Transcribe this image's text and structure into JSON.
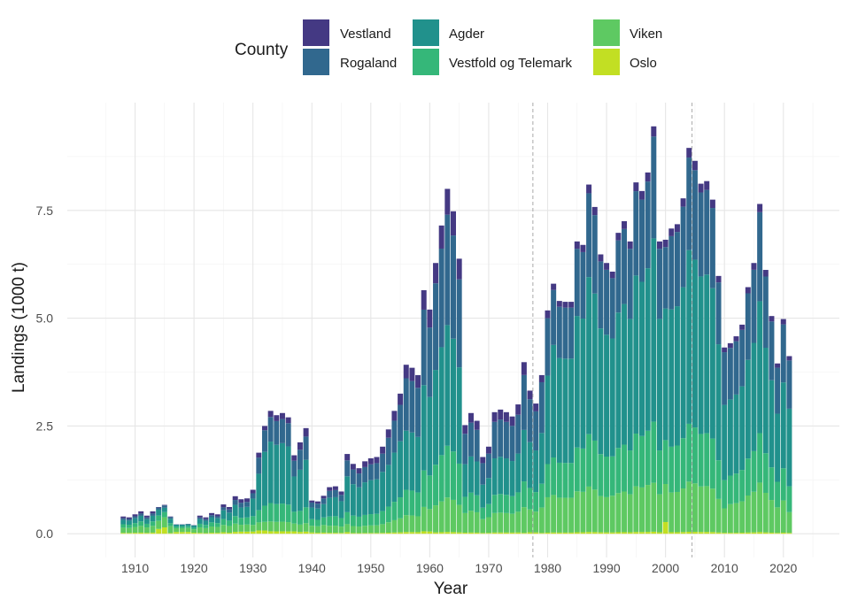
{
  "chart_data": {
    "type": "bar",
    "stacked": true,
    "xlabel": "Year",
    "ylabel": "Landings (1000 t)",
    "xlim": [
      1898.5,
      2029.5
    ],
    "ylim": [
      -0.55,
      10.0
    ],
    "x_ticks": [
      1910,
      1920,
      1930,
      1940,
      1950,
      1960,
      1970,
      1980,
      1990,
      2000,
      2010,
      2020
    ],
    "x_minor_ticks": [
      1905,
      1915,
      1925,
      1935,
      1945,
      1955,
      1965,
      1975,
      1985,
      1995,
      2005,
      2015,
      2025
    ],
    "y_ticks": [
      0,
      2.5,
      5,
      7.5
    ],
    "y_tick_labels": [
      "0.0",
      "2.5",
      "5.0",
      "7.5"
    ],
    "y_minor_ticks": [
      1.25,
      3.75,
      6.25,
      8.75
    ],
    "reference_lines_x": [
      1977.5,
      2004.5
    ],
    "legend": {
      "title": "County",
      "placement": "top",
      "items": [
        {
          "name": "Vestland",
          "color": "#443983"
        },
        {
          "name": "Rogaland",
          "color": "#31688e"
        },
        {
          "name": "Agder",
          "color": "#21918c"
        },
        {
          "name": "Vestfold og Telemark",
          "color": "#35b779"
        },
        {
          "name": "Viken",
          "color": "#5ec962"
        },
        {
          "name": "Oslo",
          "color": "#c2df23"
        }
      ]
    },
    "series_order": [
      "Oslo",
      "Viken",
      "Vestfold og Telemark",
      "Agder",
      "Rogaland",
      "Vestland"
    ],
    "years": [
      1908,
      1909,
      1910,
      1911,
      1912,
      1913,
      1914,
      1915,
      1916,
      1917,
      1918,
      1919,
      1920,
      1921,
      1922,
      1923,
      1924,
      1925,
      1926,
      1927,
      1928,
      1929,
      1930,
      1931,
      1932,
      1933,
      1934,
      1935,
      1936,
      1937,
      1938,
      1939,
      1940,
      1941,
      1942,
      1943,
      1944,
      1945,
      1946,
      1947,
      1948,
      1949,
      1950,
      1951,
      1952,
      1953,
      1954,
      1955,
      1956,
      1957,
      1958,
      1959,
      1960,
      1961,
      1962,
      1963,
      1964,
      1965,
      1966,
      1967,
      1968,
      1969,
      1970,
      1971,
      1972,
      1973,
      1974,
      1975,
      1976,
      1977,
      1978,
      1979,
      1980,
      1981,
      1982,
      1983,
      1984,
      1985,
      1986,
      1987,
      1988,
      1989,
      1990,
      1991,
      1992,
      1993,
      1994,
      1995,
      1996,
      1997,
      1998,
      1999,
      2000,
      2001,
      2002,
      2003,
      2004,
      2005,
      2006,
      2007,
      2008,
      2009,
      2010,
      2011,
      2012,
      2013,
      2014,
      2015,
      2016,
      2017,
      2018,
      2019,
      2020,
      2021
    ],
    "totals": [
      0.4,
      0.38,
      0.45,
      0.52,
      0.42,
      0.52,
      0.62,
      0.67,
      0.4,
      0.22,
      0.22,
      0.23,
      0.2,
      0.42,
      0.38,
      0.48,
      0.45,
      0.68,
      0.62,
      0.87,
      0.8,
      0.82,
      1.02,
      1.88,
      2.5,
      2.85,
      2.75,
      2.8,
      2.7,
      1.82,
      2.12,
      2.45,
      0.77,
      0.75,
      0.88,
      1.08,
      1.1,
      0.98,
      1.85,
      1.62,
      1.52,
      1.68,
      1.75,
      1.78,
      2.02,
      2.42,
      2.85,
      3.25,
      3.92,
      3.85,
      3.68,
      5.65,
      5.2,
      6.28,
      7.15,
      8.0,
      7.48,
      6.38,
      2.52,
      2.8,
      2.62,
      1.78,
      2.02,
      2.82,
      2.88,
      2.82,
      2.72,
      3.0,
      3.98,
      3.32,
      3.02,
      3.68,
      5.18,
      5.8,
      5.4,
      5.38,
      5.38,
      6.78,
      6.7,
      8.1,
      7.58,
      6.48,
      6.28,
      6.08,
      6.98,
      7.25,
      6.78,
      8.15,
      7.95,
      8.38,
      9.45,
      6.78,
      6.82,
      7.08,
      7.18,
      7.78,
      8.95,
      8.65,
      8.12,
      8.18,
      7.75,
      5.98,
      4.32,
      4.42,
      4.58,
      4.85,
      5.72,
      6.28,
      7.65,
      6.12,
      5.05,
      3.95,
      4.98,
      4.12
    ],
    "shares": {
      "Oslo": [
        0.05,
        0.05,
        0.05,
        0.05,
        0.05,
        0.05,
        0.18,
        0.22,
        0.04,
        0.18,
        0.18,
        0.18,
        0.12,
        0.05,
        0.04,
        0.05,
        0.05,
        0.05,
        0.04,
        0.05,
        0.06,
        0.06,
        0.05,
        0.04,
        0.03,
        0.02,
        0.02,
        0.02,
        0.02,
        0.03,
        0.02,
        0.02,
        0.04,
        0.03,
        0.03,
        0.02,
        0.02,
        0.02,
        0.02,
        0.01,
        0.01,
        0.01,
        0.01,
        0.01,
        0.01,
        0.01,
        0.01,
        0.01,
        0.01,
        0.01,
        0.01,
        0.01,
        0.01,
        0.005,
        0.005,
        0.005,
        0.005,
        0.005,
        0.01,
        0.01,
        0.01,
        0.01,
        0.01,
        0.01,
        0.01,
        0.01,
        0.01,
        0.01,
        0.005,
        0.01,
        0.01,
        0.005,
        0.005,
        0.005,
        0.005,
        0.005,
        0.005,
        0.005,
        0.005,
        0.005,
        0.005,
        0.005,
        0.005,
        0.005,
        0.005,
        0.005,
        0.005,
        0.005,
        0.005,
        0.005,
        0.005,
        0.005,
        0.04,
        0.005,
        0.005,
        0.005,
        0.005,
        0.005,
        0.005,
        0.005,
        0.005,
        0.005,
        0.005,
        0.005,
        0.005,
        0.005,
        0.005,
        0.005,
        0.005,
        0.005,
        0.005,
        0.005,
        0.005,
        0.005
      ],
      "Viken": [
        0.3,
        0.3,
        0.3,
        0.3,
        0.3,
        0.3,
        0.3,
        0.35,
        0.4,
        0.4,
        0.4,
        0.4,
        0.4,
        0.3,
        0.3,
        0.3,
        0.3,
        0.25,
        0.25,
        0.22,
        0.2,
        0.2,
        0.15,
        0.1,
        0.08,
        0.08,
        0.08,
        0.08,
        0.08,
        0.1,
        0.08,
        0.08,
        0.2,
        0.2,
        0.2,
        0.15,
        0.15,
        0.15,
        0.1,
        0.1,
        0.1,
        0.1,
        0.1,
        0.1,
        0.1,
        0.1,
        0.1,
        0.1,
        0.1,
        0.1,
        0.1,
        0.1,
        0.1,
        0.1,
        0.1,
        0.1,
        0.1,
        0.1,
        0.18,
        0.18,
        0.18,
        0.18,
        0.18,
        0.16,
        0.16,
        0.16,
        0.16,
        0.16,
        0.15,
        0.16,
        0.16,
        0.16,
        0.16,
        0.15,
        0.15,
        0.15,
        0.15,
        0.14,
        0.14,
        0.13,
        0.13,
        0.13,
        0.13,
        0.14,
        0.13,
        0.13,
        0.13,
        0.13,
        0.13,
        0.13,
        0.12,
        0.13,
        0.13,
        0.13,
        0.13,
        0.13,
        0.13,
        0.13,
        0.13,
        0.13,
        0.13,
        0.13,
        0.13,
        0.15,
        0.15,
        0.15,
        0.15,
        0.15,
        0.15,
        0.15,
        0.15,
        0.15,
        0.15,
        0.12
      ],
      "Vestfold og Telemark": [
        0.2,
        0.2,
        0.2,
        0.2,
        0.2,
        0.2,
        0.2,
        0.18,
        0.18,
        0.18,
        0.18,
        0.18,
        0.18,
        0.2,
        0.2,
        0.2,
        0.2,
        0.2,
        0.2,
        0.2,
        0.2,
        0.2,
        0.2,
        0.15,
        0.15,
        0.15,
        0.15,
        0.15,
        0.15,
        0.15,
        0.15,
        0.15,
        0.2,
        0.2,
        0.2,
        0.2,
        0.2,
        0.2,
        0.15,
        0.15,
        0.15,
        0.15,
        0.15,
        0.15,
        0.15,
        0.15,
        0.15,
        0.15,
        0.15,
        0.15,
        0.15,
        0.15,
        0.15,
        0.15,
        0.15,
        0.15,
        0.15,
        0.15,
        0.15,
        0.15,
        0.15,
        0.15,
        0.15,
        0.15,
        0.15,
        0.15,
        0.15,
        0.15,
        0.15,
        0.15,
        0.15,
        0.15,
        0.15,
        0.15,
        0.15,
        0.15,
        0.15,
        0.15,
        0.15,
        0.15,
        0.15,
        0.15,
        0.15,
        0.15,
        0.15,
        0.15,
        0.15,
        0.15,
        0.15,
        0.15,
        0.15,
        0.15,
        0.15,
        0.15,
        0.15,
        0.15,
        0.15,
        0.15,
        0.15,
        0.15,
        0.15,
        0.15,
        0.15,
        0.15,
        0.15,
        0.15,
        0.15,
        0.15,
        0.15,
        0.15,
        0.15,
        0.15,
        0.15,
        0.15
      ],
      "Agder": [
        0.25,
        0.25,
        0.25,
        0.25,
        0.25,
        0.25,
        0.22,
        0.15,
        0.25,
        0.2,
        0.2,
        0.2,
        0.25,
        0.25,
        0.25,
        0.25,
        0.25,
        0.3,
        0.3,
        0.3,
        0.3,
        0.3,
        0.4,
        0.45,
        0.5,
        0.5,
        0.5,
        0.5,
        0.5,
        0.45,
        0.45,
        0.45,
        0.35,
        0.35,
        0.35,
        0.4,
        0.4,
        0.4,
        0.45,
        0.45,
        0.45,
        0.45,
        0.45,
        0.45,
        0.45,
        0.4,
        0.4,
        0.4,
        0.35,
        0.35,
        0.35,
        0.35,
        0.35,
        0.35,
        0.35,
        0.35,
        0.35,
        0.35,
        0.3,
        0.3,
        0.3,
        0.3,
        0.3,
        0.3,
        0.3,
        0.3,
        0.3,
        0.3,
        0.3,
        0.32,
        0.32,
        0.32,
        0.4,
        0.45,
        0.45,
        0.45,
        0.45,
        0.45,
        0.45,
        0.45,
        0.45,
        0.45,
        0.45,
        0.45,
        0.45,
        0.45,
        0.45,
        0.45,
        0.45,
        0.45,
        0.45,
        0.45,
        0.45,
        0.45,
        0.45,
        0.45,
        0.45,
        0.45,
        0.45,
        0.45,
        0.45,
        0.45,
        0.4,
        0.4,
        0.4,
        0.4,
        0.4,
        0.4,
        0.4,
        0.4,
        0.4,
        0.4,
        0.4,
        0.45
      ],
      "Rogaland": [
        0.1,
        0.1,
        0.1,
        0.1,
        0.1,
        0.1,
        0.08,
        0.08,
        0.1,
        0.02,
        0.02,
        0.02,
        0.03,
        0.1,
        0.1,
        0.1,
        0.1,
        0.1,
        0.12,
        0.13,
        0.14,
        0.14,
        0.12,
        0.2,
        0.2,
        0.2,
        0.2,
        0.2,
        0.2,
        0.2,
        0.22,
        0.22,
        0.15,
        0.15,
        0.15,
        0.15,
        0.15,
        0.15,
        0.2,
        0.21,
        0.21,
        0.21,
        0.21,
        0.21,
        0.21,
        0.26,
        0.26,
        0.26,
        0.31,
        0.31,
        0.31,
        0.31,
        0.31,
        0.32,
        0.32,
        0.32,
        0.32,
        0.32,
        0.28,
        0.28,
        0.28,
        0.28,
        0.28,
        0.3,
        0.3,
        0.3,
        0.3,
        0.3,
        0.32,
        0.3,
        0.3,
        0.32,
        0.26,
        0.22,
        0.22,
        0.22,
        0.22,
        0.23,
        0.23,
        0.24,
        0.24,
        0.24,
        0.24,
        0.23,
        0.24,
        0.24,
        0.24,
        0.24,
        0.24,
        0.24,
        0.25,
        0.24,
        0.21,
        0.24,
        0.24,
        0.24,
        0.24,
        0.24,
        0.24,
        0.24,
        0.24,
        0.24,
        0.28,
        0.27,
        0.27,
        0.27,
        0.27,
        0.27,
        0.27,
        0.27,
        0.27,
        0.27,
        0.27,
        0.28
      ],
      "Vestland": [
        0.1,
        0.1,
        0.1,
        0.1,
        0.1,
        0.1,
        0.02,
        0.02,
        0.03,
        0.02,
        0.02,
        0.02,
        0.02,
        0.1,
        0.11,
        0.1,
        0.1,
        0.1,
        0.09,
        0.1,
        0.1,
        0.1,
        0.08,
        0.06,
        0.04,
        0.05,
        0.05,
        0.05,
        0.05,
        0.07,
        0.08,
        0.08,
        0.06,
        0.07,
        0.07,
        0.08,
        0.08,
        0.08,
        0.08,
        0.08,
        0.08,
        0.08,
        0.08,
        0.08,
        0.08,
        0.08,
        0.08,
        0.08,
        0.08,
        0.08,
        0.08,
        0.08,
        0.08,
        0.075,
        0.075,
        0.075,
        0.075,
        0.075,
        0.08,
        0.08,
        0.08,
        0.08,
        0.08,
        0.08,
        0.08,
        0.08,
        0.08,
        0.08,
        0.075,
        0.06,
        0.06,
        0.045,
        0.035,
        0.025,
        0.025,
        0.025,
        0.025,
        0.025,
        0.025,
        0.025,
        0.025,
        0.025,
        0.025,
        0.025,
        0.025,
        0.025,
        0.025,
        0.025,
        0.025,
        0.025,
        0.025,
        0.025,
        0.025,
        0.025,
        0.025,
        0.025,
        0.025,
        0.025,
        0.025,
        0.025,
        0.025,
        0.025,
        0.025,
        0.025,
        0.025,
        0.025,
        0.025,
        0.025,
        0.025,
        0.025,
        0.025,
        0.025,
        0.025,
        0.025
      ]
    }
  }
}
